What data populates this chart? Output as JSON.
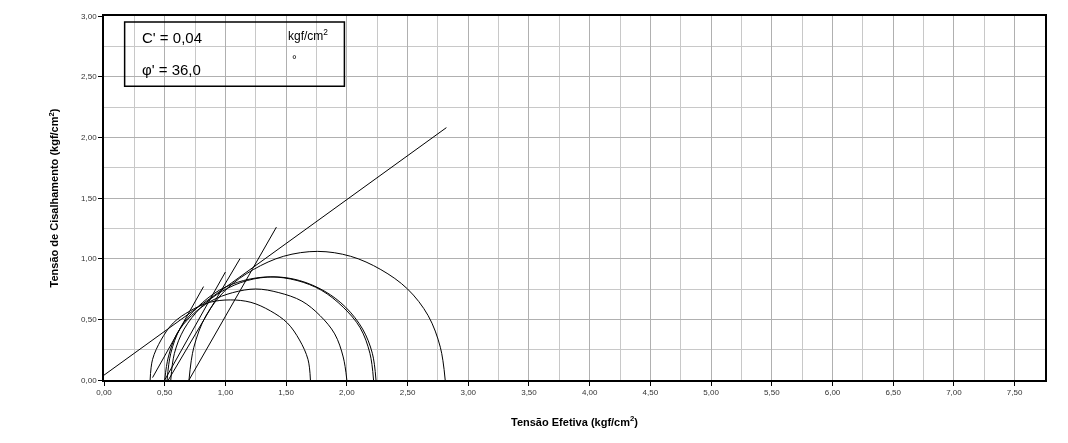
{
  "chart_data": {
    "type": "line",
    "xlabel": "Tensão Efetiva (kgf/cm$^{2}$)",
    "ylabel": "Tensão de Cisalhamento (kgf/cm$^{2}$)",
    "annotations": [
      "C' = 0,04",
      "kgf/cm$^{2}$",
      "φ' = 36,0",
      "°"
    ],
    "xlim": [
      0,
      7.75
    ],
    "xticks": [
      {
        "value": 0,
        "label": "0,00"
      },
      {
        "value": 0.25,
        "label": null
      },
      {
        "value": 0.5,
        "label": "0,50"
      },
      {
        "value": 0.75,
        "label": null
      },
      {
        "value": 1,
        "label": "1,00"
      },
      {
        "value": 1.25,
        "label": null
      },
      {
        "value": 1.5,
        "label": "1,50"
      },
      {
        "value": 1.75,
        "label": null
      },
      {
        "value": 2,
        "label": "2,00"
      },
      {
        "value": 2.25,
        "label": null
      },
      {
        "value": 2.5,
        "label": "2,50"
      },
      {
        "value": 2.75,
        "label": null
      },
      {
        "value": 3,
        "label": "3,00"
      },
      {
        "value": 3.25,
        "label": null
      },
      {
        "value": 3.5,
        "label": "3,50"
      },
      {
        "value": 3.75,
        "label": null
      },
      {
        "value": 4,
        "label": "4,00"
      },
      {
        "value": 4.25,
        "label": null
      },
      {
        "value": 4.5,
        "label": "4,50"
      },
      {
        "value": 4.75,
        "label": null
      },
      {
        "value": 5,
        "label": "5,00"
      },
      {
        "value": 5.25,
        "label": null
      },
      {
        "value": 5.5,
        "label": "5,50"
      },
      {
        "value": 5.75,
        "label": null
      },
      {
        "value": 6,
        "label": "6,00"
      },
      {
        "value": 6.25,
        "label": null
      },
      {
        "value": 6.5,
        "label": "6,50"
      },
      {
        "value": 6.75,
        "label": null
      },
      {
        "value": 7,
        "label": "7,00"
      },
      {
        "value": 7.25,
        "label": null
      },
      {
        "value": 7.5,
        "label": "7,50"
      }
    ],
    "ylim": [
      0,
      3
    ],
    "yticks": [
      {
        "value": 0,
        "label": "0,00"
      },
      {
        "value": 0.25,
        "label": null
      },
      {
        "value": 0.5,
        "label": "0,50"
      },
      {
        "value": 0.75,
        "label": null
      },
      {
        "value": 1,
        "label": "1,00"
      },
      {
        "value": 1.25,
        "label": null
      },
      {
        "value": 1.5,
        "label": "1,50"
      },
      {
        "value": 1.75,
        "label": null
      },
      {
        "value": 2,
        "label": "2,00"
      },
      {
        "value": 2.25,
        "label": null
      },
      {
        "value": 2.5,
        "label": "2,50"
      },
      {
        "value": 2.75,
        "label": null
      },
      {
        "value": 3,
        "label": "3,00"
      }
    ],
    "grid": true,
    "marker": "none",
    "line_style": "solid",
    "series": [
      {
        "color": "#000000",
        "x": [
          0.38,
          0.4,
          0.47,
          0.57,
          0.71,
          0.87,
          1.04,
          1.21,
          1.37,
          1.51,
          1.61,
          1.68,
          1.7
        ],
        "values": [
          0,
          0.17,
          0.33,
          0.47,
          0.57,
          0.64,
          0.66,
          0.64,
          0.57,
          0.47,
          0.33,
          0.17,
          0
        ]
      },
      {
        "color": "#000000",
        "x": [
          0.5,
          0.53,
          0.6,
          0.72,
          0.88,
          1.06,
          1.25,
          1.44,
          1.63,
          1.78,
          1.9,
          1.97,
          2.0
        ],
        "values": [
          0,
          0.19,
          0.38,
          0.53,
          0.65,
          0.72,
          0.75,
          0.72,
          0.65,
          0.53,
          0.38,
          0.19,
          0
        ]
      },
      {
        "color": "#000000",
        "x": [
          0.52,
          0.55,
          0.63,
          0.77,
          0.95,
          1.15,
          1.37,
          1.59,
          1.79,
          1.97,
          2.11,
          2.19,
          2.22
        ],
        "values": [
          0,
          0.22,
          0.43,
          0.6,
          0.74,
          0.82,
          0.85,
          0.82,
          0.74,
          0.6,
          0.43,
          0.22,
          0
        ]
      },
      {
        "color": "#000000",
        "x": [
          0.55,
          0.58,
          0.66,
          0.8,
          0.97,
          1.18,
          1.4,
          1.61,
          1.82,
          1.99,
          2.13,
          2.21,
          2.24
        ],
        "values": [
          0,
          0.22,
          0.42,
          0.6,
          0.73,
          0.82,
          0.85,
          0.82,
          0.73,
          0.6,
          0.42,
          0.22,
          0
        ]
      },
      {
        "color": "#000000",
        "x": [
          0.7,
          0.74,
          0.84,
          1.01,
          1.23,
          1.48,
          1.76,
          2.03,
          2.28,
          2.5,
          2.67,
          2.77,
          2.81
        ],
        "values": [
          0,
          0.27,
          0.53,
          0.75,
          0.91,
          1.02,
          1.06,
          1.02,
          0.91,
          0.75,
          0.53,
          0.27,
          0
        ]
      },
      {
        "color": "#000000",
        "x": [
          0.4,
          0.82
        ],
        "values": [
          0.02,
          0.77
        ]
      },
      {
        "color": "#000000",
        "x": [
          0.5,
          1.0
        ],
        "values": [
          0,
          0.89
        ]
      },
      {
        "color": "#000000",
        "x": [
          0.53,
          1.12
        ],
        "values": [
          0,
          1.0
        ]
      },
      {
        "color": "#000000",
        "x": [
          0.7,
          1.42
        ],
        "values": [
          0,
          1.26
        ]
      },
      {
        "color": "#000000",
        "x": [
          0,
          2.82
        ],
        "values": [
          0.04,
          2.08
        ]
      }
    ]
  }
}
